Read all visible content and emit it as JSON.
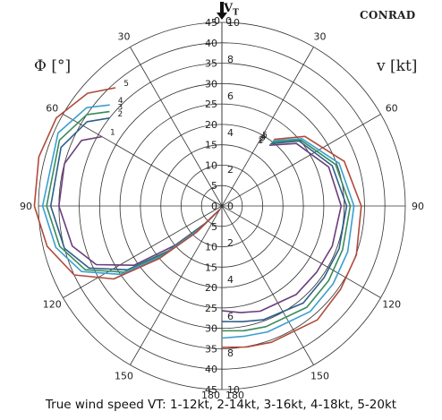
{
  "brand": "CONRAD",
  "caption": "True wind speed VT: 1-12kt, 2-14kt, 3-16kt, 4-18kt, 5-20kt",
  "chart_data": [
    {
      "type": "polar-line",
      "side": "left",
      "ylabel": "Φ [°]",
      "top_label": "VT",
      "radial_ticks": [
        "0",
        "5",
        "10",
        "15",
        "20",
        "25",
        "30",
        "35",
        "40",
        "45"
      ],
      "angle_ticks": [
        "0",
        "30",
        "60",
        "90",
        "120",
        "150",
        "180"
      ],
      "theta_unit": "degrees from true wind",
      "r_unit": "degrees (Φ)",
      "series": [
        {
          "name": "1",
          "color": "#6b3d7a",
          "points": [
            [
              60,
              34
            ],
            [
              65,
              38
            ],
            [
              75,
              40
            ],
            [
              90,
              40
            ],
            [
              105,
              38
            ],
            [
              115,
              34
            ],
            [
              124,
              26
            ],
            [
              130,
              15
            ],
            [
              136,
              6
            ],
            [
              150,
              1
            ]
          ]
        },
        {
          "name": "2",
          "color": "#2e5f8a",
          "points": [
            [
              52,
              35
            ],
            [
              58,
              39
            ],
            [
              70,
              42
            ],
            [
              90,
              42
            ],
            [
              105,
              40
            ],
            [
              115,
              36
            ],
            [
              124,
              28
            ],
            [
              130,
              17
            ],
            [
              136,
              7
            ],
            [
              150,
              1
            ]
          ]
        },
        {
          "name": "3",
          "color": "#3a8a5a",
          "points": [
            [
              50,
              36
            ],
            [
              56,
              40
            ],
            [
              68,
              43
            ],
            [
              90,
              43
            ],
            [
              104,
              41
            ],
            [
              115,
              37
            ],
            [
              124,
              29
            ],
            [
              130,
              18
            ],
            [
              136,
              7
            ],
            [
              150,
              1
            ]
          ]
        },
        {
          "name": "4",
          "color": "#3a9fcf",
          "points": [
            [
              48,
              37
            ],
            [
              54,
              41
            ],
            [
              66,
              44
            ],
            [
              90,
              44
            ],
            [
              104,
              42
            ],
            [
              115,
              38
            ],
            [
              124,
              30
            ],
            [
              130,
              19
            ],
            [
              136,
              8
            ],
            [
              150,
              1
            ]
          ]
        },
        {
          "name": "5",
          "color": "#b04a3a",
          "points": [
            [
              42,
              39
            ],
            [
              50,
              43
            ],
            [
              62,
              46
            ],
            [
              75,
              46.5
            ],
            [
              90,
              46
            ],
            [
              103,
              44
            ],
            [
              115,
              40
            ],
            [
              124,
              32
            ],
            [
              130,
              20
            ],
            [
              136,
              9
            ],
            [
              150,
              1
            ]
          ]
        }
      ]
    },
    {
      "type": "polar-line",
      "side": "right",
      "ylabel": "v [kt]",
      "radial_ticks": [
        "0",
        "2",
        "4",
        "6",
        "8",
        "10"
      ],
      "angle_ticks": [
        "0",
        "30",
        "60",
        "90",
        "120",
        "150",
        "180"
      ],
      "theta_unit": "degrees from true wind",
      "r_unit": "knots",
      "series": [
        {
          "name": "1",
          "color": "#6b3d7a",
          "points": [
            [
              38,
              4.2
            ],
            [
              50,
              5.3
            ],
            [
              70,
              6.2
            ],
            [
              90,
              6.5
            ],
            [
              110,
              6.4
            ],
            [
              125,
              6.3
            ],
            [
              140,
              6.3
            ],
            [
              160,
              6.1
            ],
            [
              170,
              5.9
            ],
            [
              180,
              5.7
            ]
          ]
        },
        {
          "name": "2",
          "color": "#2e5f8a",
          "points": [
            [
              38,
              4.3
            ],
            [
              50,
              5.5
            ],
            [
              70,
              6.4
            ],
            [
              90,
              6.8
            ],
            [
              110,
              6.8
            ],
            [
              125,
              6.8
            ],
            [
              140,
              6.9
            ],
            [
              160,
              6.6
            ],
            [
              170,
              6.4
            ],
            [
              180,
              6.3
            ]
          ]
        },
        {
          "name": "3",
          "color": "#3a8a5a",
          "points": [
            [
              38,
              4.4
            ],
            [
              50,
              5.6
            ],
            [
              70,
              6.6
            ],
            [
              90,
              7.0
            ],
            [
              110,
              7.0
            ],
            [
              125,
              7.1
            ],
            [
              140,
              7.2
            ],
            [
              160,
              7.0
            ],
            [
              170,
              6.9
            ],
            [
              180,
              6.8
            ]
          ]
        },
        {
          "name": "4",
          "color": "#3a9fcf",
          "points": [
            [
              38,
              4.5
            ],
            [
              50,
              5.7
            ],
            [
              70,
              6.8
            ],
            [
              90,
              7.2
            ],
            [
              110,
              7.3
            ],
            [
              125,
              7.4
            ],
            [
              140,
              7.5
            ],
            [
              160,
              7.3
            ],
            [
              170,
              7.2
            ],
            [
              180,
              7.2
            ]
          ]
        },
        {
          "name": "5",
          "color": "#b04a3a",
          "points": [
            [
              38,
              4.6
            ],
            [
              50,
              5.9
            ],
            [
              70,
              7.1
            ],
            [
              90,
              7.6
            ],
            [
              110,
              7.8
            ],
            [
              125,
              7.9
            ],
            [
              140,
              8.1
            ],
            [
              160,
              7.9
            ],
            [
              170,
              7.8
            ],
            [
              180,
              7.7
            ]
          ]
        }
      ]
    }
  ]
}
